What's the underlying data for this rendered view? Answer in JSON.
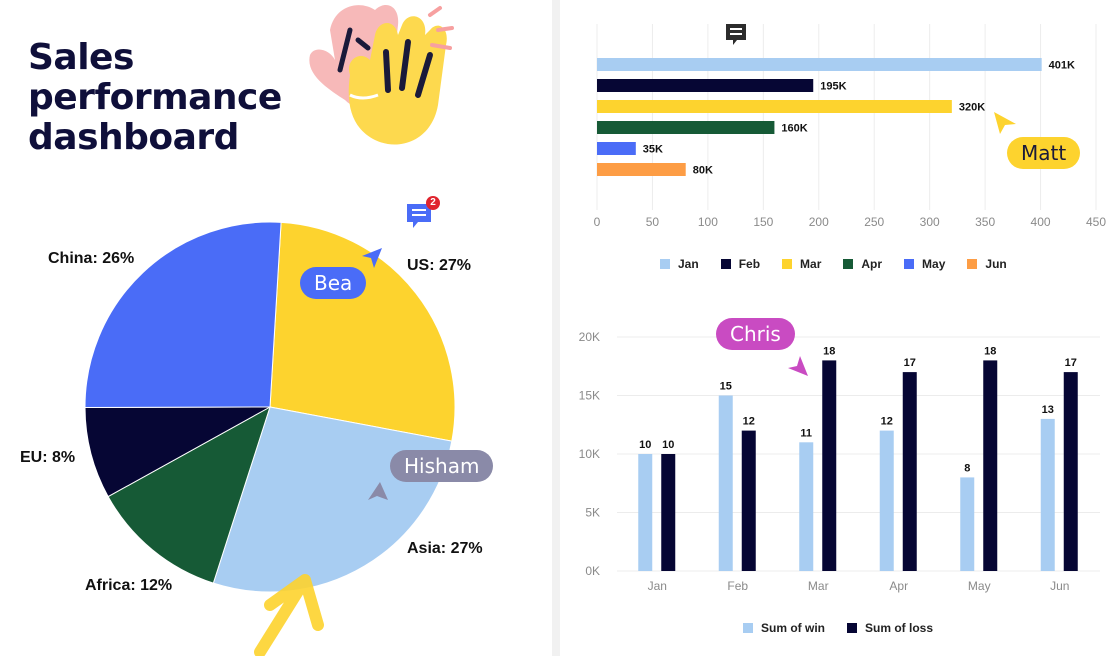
{
  "page": {
    "title": "Sales performance dashboard"
  },
  "cursors": {
    "bea": {
      "label": "Bea",
      "color": "#4a6cf7"
    },
    "hisham": {
      "label": "Hisham",
      "color": "#8a8aa8"
    },
    "matt": {
      "label": "Matt",
      "color": "#fdd32e"
    },
    "chris": {
      "label": "Chris",
      "color": "#c94bc2"
    }
  },
  "comments": {
    "pie_comment": {
      "icon": "comment-icon",
      "count": "2",
      "color": "#4a6cf7"
    },
    "bar_comment": {
      "icon": "comment-icon",
      "color": "#2c2c2c"
    }
  },
  "chart_data": [
    {
      "type": "pie",
      "categories": [
        "US",
        "Asia",
        "Africa",
        "EU",
        "China"
      ],
      "values": [
        27,
        27,
        12,
        8,
        26
      ],
      "labels": [
        "US: 27%",
        "Asia: 27%",
        "Africa: 12%",
        "EU: 8%",
        "China: 26%"
      ],
      "colors": [
        "#fdd32e",
        "#a8cdf2",
        "#165a36",
        "#060634",
        "#4a6cf7"
      ]
    },
    {
      "type": "bar",
      "orientation": "horizontal",
      "categories": [
        "Jan",
        "Feb",
        "Mar",
        "Apr",
        "May",
        "Jun"
      ],
      "values": [
        401,
        195,
        320,
        160,
        35,
        80
      ],
      "value_labels": [
        "401K",
        "195K",
        "320K",
        "160K",
        "35K",
        "80K"
      ],
      "colors": [
        "#a8cdf2",
        "#060634",
        "#fdd32e",
        "#165a36",
        "#4a6cf7",
        "#fd9d45"
      ],
      "xticks": [
        "0",
        "50",
        "100",
        "150",
        "200",
        "250",
        "300",
        "350",
        "400",
        "450"
      ],
      "xlim": [
        0,
        450
      ],
      "legend": [
        "Jan",
        "Feb",
        "Mar",
        "Apr",
        "May",
        "Jun"
      ],
      "legend_position": "bottom"
    },
    {
      "type": "bar",
      "categories": [
        "Jan",
        "Feb",
        "Mar",
        "Apr",
        "May",
        "Jun"
      ],
      "series": [
        {
          "name": "Sum of win",
          "values": [
            10,
            15,
            11,
            12,
            8,
            13
          ],
          "color": "#a8cdf2"
        },
        {
          "name": "Sum of loss",
          "values": [
            10,
            12,
            18,
            17,
            18,
            17
          ],
          "color": "#060634"
        }
      ],
      "yticks": [
        "0K",
        "5K",
        "10K",
        "15K",
        "20K"
      ],
      "ylim": [
        0,
        20
      ],
      "legend_position": "bottom"
    }
  ]
}
